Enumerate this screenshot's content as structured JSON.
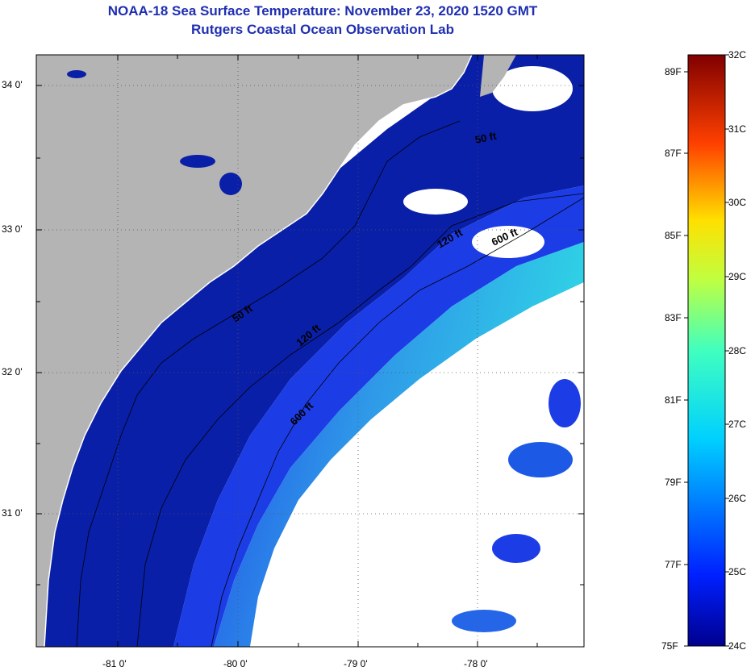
{
  "title": {
    "line1": "NOAA-18 Sea Surface Temperature:  November 23, 2020 1520 GMT",
    "line2": "Rutgers Coastal Ocean Observation Lab"
  },
  "map": {
    "lat_labels": [
      "34 0'",
      "33 0'",
      "32 0'",
      "31 0'"
    ],
    "lon_labels": [
      "-81 0'",
      "-80 0'",
      "-79 0'",
      "-78 0'"
    ],
    "isobath_labels": [
      "50 ft",
      "50 ft",
      "120 ft",
      "120 ft",
      "600 ft",
      "600 ft"
    ],
    "colors": {
      "land": "#b4b4b4",
      "cold_water": "#0a1fa8",
      "shelf_water": "#1c3ce6",
      "warm_water": "#2fd8e6",
      "cloud": "#ffffff"
    }
  },
  "colorbar": {
    "fahrenheit_labels": [
      "89F",
      "87F",
      "85F",
      "83F",
      "81F",
      "79F",
      "77F",
      "75F"
    ],
    "celsius_labels": [
      "32C",
      "31C",
      "30C",
      "29C",
      "28C",
      "27C",
      "26C",
      "25C",
      "24C"
    ],
    "range_c": [
      24,
      32
    ]
  }
}
